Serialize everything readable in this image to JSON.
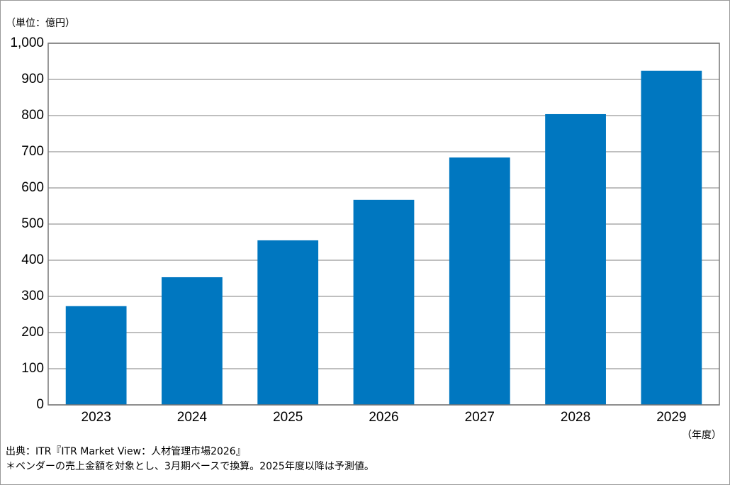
{
  "chart_data": {
    "type": "bar",
    "unit_label": "（単位：億円）",
    "x_unit_label": "（年度）",
    "categories": [
      "2023",
      "2024",
      "2025",
      "2026",
      "2027",
      "2028",
      "2029"
    ],
    "values": [
      273,
      353,
      455,
      567,
      684,
      804,
      924
    ],
    "color": "#0077c0",
    "ylim": [
      0,
      1000
    ],
    "yticks": [
      0,
      100,
      200,
      300,
      400,
      500,
      600,
      700,
      800,
      900,
      {
        "value": 1000,
        "label": "1,000"
      }
    ],
    "grid": true,
    "source": "出典：ITR『ITR Market View：人材管理市場2026』",
    "note": "＊ベンダーの売上金額を対象とし、3月期ベースで換算。2025年度以降は予測値。"
  }
}
